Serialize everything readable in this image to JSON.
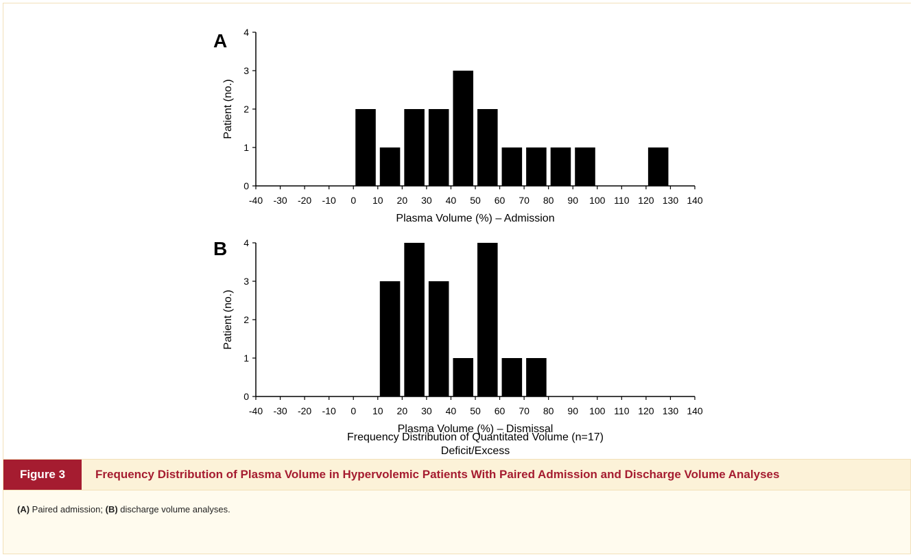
{
  "figure": {
    "tag": "Figure 3",
    "title": "Frequency Distribution of Plasma Volume in Hypervolemic Patients With Paired Admission and Discharge Volume Analyses",
    "footer_line1": "Frequency Distribution of Quantitated Volume (n=17)",
    "footer_line2": "Deficit/Excess",
    "legend": {
      "a_label": "(A)",
      "a_text": " Paired admission; ",
      "b_label": "(B)",
      "b_text": " discharge volume analyses."
    }
  },
  "colors": {
    "bars": "#000000",
    "accent": "#a51c30",
    "caption_bg": "#fcf2d8",
    "legend_bg": "#fffbee"
  },
  "chart_data": [
    {
      "type": "bar",
      "panel_label": "A",
      "xlabel": "Plasma Volume (%) – Admission",
      "ylabel": "Patient (no.)",
      "x_ticks": [
        -40,
        -30,
        -20,
        -10,
        0,
        10,
        20,
        30,
        40,
        50,
        60,
        70,
        80,
        90,
        100,
        110,
        120,
        130,
        140
      ],
      "y_ticks": [
        0,
        1,
        2,
        3,
        4
      ],
      "xlim": [
        -40,
        140
      ],
      "ylim": [
        0,
        4
      ],
      "bin_width": 10,
      "bin_starts": [
        0,
        10,
        20,
        30,
        40,
        50,
        60,
        70,
        80,
        90,
        120
      ],
      "values": [
        2,
        1,
        2,
        2,
        3,
        2,
        1,
        1,
        1,
        1,
        1
      ]
    },
    {
      "type": "bar",
      "panel_label": "B",
      "xlabel": "Plasma Volume (%) – Dismissal",
      "ylabel": "Patient (no.)",
      "x_ticks": [
        -40,
        -30,
        -20,
        -10,
        0,
        10,
        20,
        30,
        40,
        50,
        60,
        70,
        80,
        90,
        100,
        110,
        120,
        130,
        140
      ],
      "y_ticks": [
        0,
        1,
        2,
        3,
        4
      ],
      "xlim": [
        -40,
        140
      ],
      "ylim": [
        0,
        4
      ],
      "bin_width": 10,
      "bin_starts": [
        10,
        20,
        30,
        40,
        50,
        60,
        70
      ],
      "values": [
        3,
        4,
        3,
        1,
        4,
        1,
        1
      ]
    }
  ]
}
